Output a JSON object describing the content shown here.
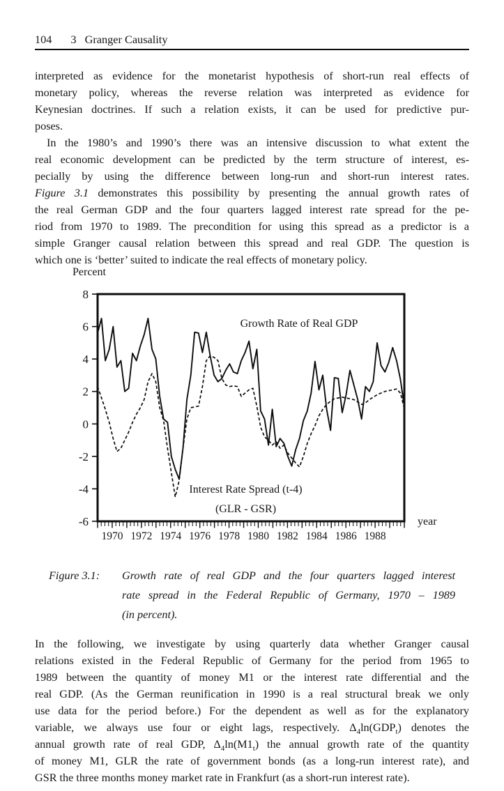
{
  "header": {
    "page_number": "104",
    "chapter_number": "3",
    "chapter_title": "Granger Causality"
  },
  "paragraphs": {
    "p1_lines": [
      "interpreted as evidence for the monetarist hypothesis of short-run real effects of",
      "monetary policy, whereas the reverse relation was interpreted as evidence for",
      "Keynesian doctrines. If such a relation exists, it can be used for predictive pur-",
      "poses."
    ],
    "p2_lines": [
      "In the 1980’s and 1990’s there was an intensive discussion to what extent the",
      "real economic development can be predicted by the term structure of interest, es-",
      "pecially by using the difference between long-run and short-run interest rates.",
      [
        {
          "t": "Figure 3.1",
          "i": true
        },
        {
          "t": " demonstrates this possibility by presenting the annual growth rates of"
        }
      ],
      "the real German GDP and the four quarters lagged interest rate spread for the pe-",
      "riod from 1970 to 1989. The precondition for using this spread as a predictor is a",
      "simple Granger causal relation between this spread and real GDP. The question is",
      "which one is ‘better’ suited to indicate the real effects of monetary policy."
    ],
    "p3_lines": [
      "In the following, we investigate by using quarterly data whether Granger causal",
      "relations existed in the Federal Republic of Germany for the period from 1965 to",
      "1989 between the quantity of money M1 or the interest rate differential and the",
      "real GDP. (As the German reunification in 1990 is a real structural break we only",
      "use data for the period before.) For the dependent as well as for the explanatory",
      [
        {
          "t": "variable, we always use four or eight lags, respectively. Δ"
        },
        {
          "t": "4",
          "sub": true
        },
        {
          "t": "ln(GDP"
        },
        {
          "t": "t",
          "sub": true
        },
        {
          "t": ") denotes the"
        }
      ],
      [
        {
          "t": "annual growth rate of real GDP, Δ"
        },
        {
          "t": "4",
          "sub": true
        },
        {
          "t": "ln(M1"
        },
        {
          "t": "t",
          "sub": true
        },
        {
          "t": ") the annual growth rate of the quantity"
        }
      ],
      "of money M1, GLR the rate of government bonds (as a long-run interest rate), and",
      "GSR the three months money market rate in Frankfurt (as a short-run interest rate)."
    ]
  },
  "caption": {
    "label": "Figure 3.1:",
    "lines": [
      "Growth rate of real GDP and the four quarters lagged interest",
      "rate spread in the Federal Republic of Germany, 1970 – 1989",
      "(in percent)."
    ]
  },
  "chart_data": {
    "type": "line",
    "title": "",
    "ylabel": "Percent",
    "xlabel": "year",
    "ylim": [
      -6,
      8
    ],
    "yticks": [
      8,
      6,
      4,
      2,
      0,
      -2,
      -4,
      -6
    ],
    "xlim": [
      1969,
      1990
    ],
    "xtick_labels": [
      "1970",
      "1972",
      "1974",
      "1976",
      "1978",
      "1980",
      "1982",
      "1984",
      "1986",
      "1988"
    ],
    "x_start": 1970.0,
    "x_step_years": 0.25,
    "grid": false,
    "legend_position": "inline-annotations",
    "labels": {
      "gdp": "Growth Rate of Real GDP",
      "spread_line1": "Interest Rate Spread (t-4)",
      "spread_line2": "(GLR - GSR)"
    },
    "series": [
      {
        "name": "Growth Rate of Real GDP",
        "style": "solid",
        "values": [
          5.6,
          6.5,
          3.9,
          4.6,
          6.0,
          3.5,
          3.9,
          2.0,
          2.2,
          4.35,
          3.9,
          4.8,
          5.5,
          6.5,
          4.6,
          4.0,
          1.7,
          0.3,
          0.1,
          -2.0,
          -2.8,
          -3.4,
          -1.5,
          1.5,
          3.0,
          5.65,
          5.6,
          4.4,
          5.65,
          4.2,
          3.0,
          2.6,
          2.8,
          3.3,
          3.7,
          3.2,
          3.1,
          3.9,
          4.4,
          5.1,
          3.4,
          4.6,
          0.8,
          0.3,
          -1.3,
          0.9,
          -1.4,
          -0.9,
          -1.2,
          -2.0,
          -2.6,
          -1.6,
          -0.9,
          0.2,
          0.8,
          1.9,
          3.85,
          2.1,
          3.0,
          0.9,
          -0.4,
          2.85,
          2.8,
          0.7,
          1.8,
          3.3,
          2.4,
          1.5,
          0.3,
          2.3,
          2.0,
          2.6,
          5.0,
          3.6,
          3.2,
          3.8,
          4.7,
          3.9,
          2.75,
          1.05
        ]
      },
      {
        "name": "Interest Rate Spread (t-4) (GLR - GSR)",
        "style": "dashed",
        "values": [
          2.3,
          1.6,
          0.9,
          0.1,
          -0.9,
          -1.7,
          -1.5,
          -1.0,
          -0.5,
          0.1,
          0.6,
          1.0,
          1.5,
          2.6,
          3.1,
          2.6,
          1.0,
          0.2,
          -1.5,
          -3.0,
          -4.5,
          -3.5,
          -1.5,
          0.3,
          1.0,
          1.05,
          1.1,
          2.3,
          3.9,
          4.2,
          4.1,
          3.9,
          2.8,
          2.4,
          2.3,
          2.35,
          2.3,
          1.7,
          1.9,
          2.1,
          2.2,
          1.1,
          -0.2,
          -0.8,
          -1.0,
          -1.3,
          -1.1,
          -1.5,
          -1.3,
          -1.8,
          -2.1,
          -2.4,
          -2.65,
          -2.0,
          -1.2,
          -0.6,
          -0.1,
          0.5,
          0.9,
          1.2,
          1.4,
          1.55,
          1.6,
          1.65,
          1.6,
          1.55,
          1.5,
          1.35,
          1.2,
          1.3,
          1.5,
          1.65,
          1.8,
          1.9,
          2.0,
          2.05,
          2.1,
          2.15,
          1.9,
          0.95
        ]
      }
    ]
  }
}
